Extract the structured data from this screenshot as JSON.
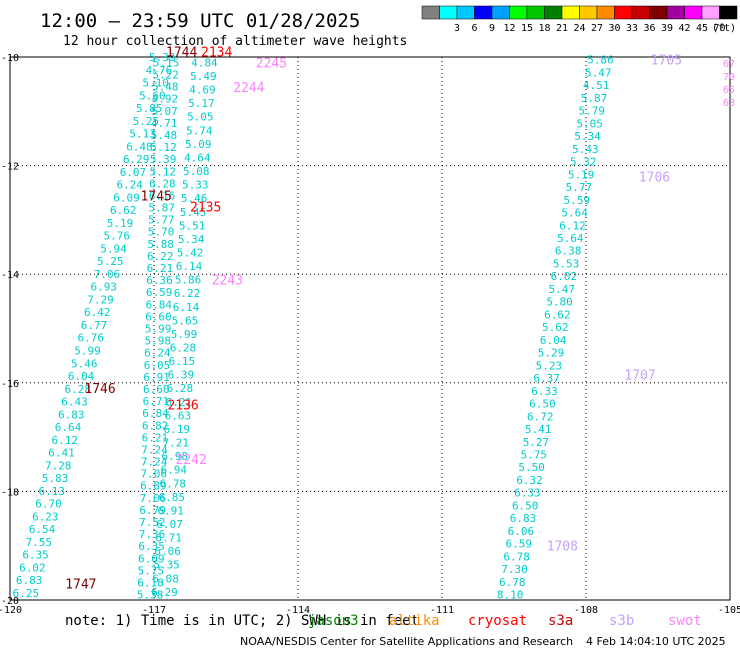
{
  "header": {
    "title": "12:00 – 23:59 UTC 01/28/2025",
    "subtitle": "12 hour collection of altimeter wave heights"
  },
  "legend": {
    "unit": "(ft)",
    "bins": [
      {
        "label": "",
        "color": "#808080"
      },
      {
        "label": "3",
        "color": "#00ffff"
      },
      {
        "label": "6",
        "color": "#00c8ff"
      },
      {
        "label": "9",
        "color": "#0000ff"
      },
      {
        "label": "12",
        "color": "#00a0ff"
      },
      {
        "label": "15",
        "color": "#00ff00"
      },
      {
        "label": "18",
        "color": "#00c800"
      },
      {
        "label": "21",
        "color": "#008000"
      },
      {
        "label": "24",
        "color": "#ffff00"
      },
      {
        "label": "27",
        "color": "#ffc800"
      },
      {
        "label": "30",
        "color": "#ff8c00"
      },
      {
        "label": "33",
        "color": "#ff0000"
      },
      {
        "label": "36",
        "color": "#c80000"
      },
      {
        "label": "39",
        "color": "#800000"
      },
      {
        "label": "42",
        "color": "#a000a0"
      },
      {
        "label": "45",
        "color": "#ff00ff"
      },
      {
        "label": "70",
        "color": "#ffa0ff"
      },
      {
        "label": "",
        "color": "#000000"
      }
    ]
  },
  "footer": {
    "note": "note: 1) Time is in UTC; 2) SWH is in feet",
    "credit": "NOAA/NESDIS Center for Satellite Applications and Research",
    "generated": "4 Feb 14:04:10 UTC 2025",
    "satellites": [
      {
        "name": "jason3",
        "color": "#008000"
      },
      {
        "name": "altika",
        "color": "#ff8c00"
      },
      {
        "name": "cryosat",
        "color": "#ff0000"
      },
      {
        "name": "s3a",
        "color": "#c80000"
      },
      {
        "name": "s3b",
        "color": "#c8a0ff"
      },
      {
        "name": "swot",
        "color": "#ff80ff"
      }
    ]
  },
  "chart_data": {
    "type": "scatter",
    "xlim": [
      -120,
      -105
    ],
    "ylim": [
      -20,
      -10
    ],
    "grid": true,
    "x_ticks": [
      "-120",
      "-117",
      "-114",
      "-111",
      "-108",
      "-105"
    ],
    "y_ticks": [
      "-10",
      "-12",
      "-14",
      "-16",
      "-18",
      "-20"
    ],
    "text_color": "#00cccc",
    "tracks": [
      {
        "values": [
          "6.25",
          "6.83",
          "6.02",
          "6.35",
          "7.55",
          "6.54",
          "6.23",
          "6.70",
          "6.13",
          "5.83",
          "7.28",
          "6.41",
          "6.12",
          "6.64",
          "6.83",
          "6.43",
          "6.28",
          "6.04",
          "5.46",
          "5.99",
          "6.76",
          "6.77",
          "6.42",
          "7.29",
          "6.93",
          "7.06",
          "5.25",
          "5.94",
          "5.76",
          "5.19",
          "6.62",
          "6.09",
          "6.24",
          "6.07",
          "6.29",
          "6.48",
          "5.13",
          "5.25",
          "5.85",
          "5.60",
          "5.10",
          "4.76",
          "5.39"
        ],
        "x_start": -119.67,
        "y_start": -19.87,
        "x_end": -116.83,
        "y_end": -10.0
      },
      {
        "values": [
          "5.38",
          "6.18",
          "5.75",
          "6.09",
          "6.35",
          "7.36",
          "7.52",
          "6.79",
          "7.06",
          "6.89",
          "7.06",
          "7.24",
          "7.24",
          "6.21",
          "6.82",
          "6.84",
          "6.71",
          "6.60",
          "6.91",
          "6.05",
          "6.24",
          "5.98",
          "5.99",
          "6.60",
          "6.84",
          "6.59",
          "6.36",
          "6.21",
          "6.22",
          "5.88",
          "5.70",
          "5.77",
          "5.87",
          "6.16",
          "6.28",
          "5.12",
          "5.39",
          "5.12",
          "5.48",
          "4.71",
          "5.07",
          "4.92",
          "5.48",
          "5.22",
          "5.15"
        ],
        "x_start": -117.08,
        "y_start": -19.9,
        "x_end": -116.75,
        "y_end": -10.1
      },
      {
        "values": [
          "6.29",
          "6.08",
          "5.35",
          "6.06",
          "6.71",
          "6.07",
          "6.91",
          "6.85",
          "6.78",
          "6.94",
          "6.98",
          "7.21",
          "6.19",
          "6.63",
          "6.21",
          "6.28",
          "6.39",
          "6.15",
          "6.28",
          "5.99",
          "5.65",
          "6.14",
          "6.22",
          "5.86",
          "6.14",
          "5.42",
          "5.34",
          "5.51",
          "5.45",
          "5.46",
          "5.33",
          "5.08",
          "4.64",
          "5.09",
          "5.74",
          "5.05",
          "5.17",
          "4.69",
          "5.49",
          "4.84"
        ],
        "x_start": -116.78,
        "y_start": -19.85,
        "x_end": -115.95,
        "y_end": -10.1
      },
      {
        "values": [
          "5.86",
          "5.47",
          "4.51",
          "5.87",
          "5.79",
          "5.05",
          "5.34",
          "5.43",
          "5.32",
          "5.19",
          "5.77",
          "5.59",
          "5.64",
          "6.12",
          "5.64",
          "6.38",
          "5.53",
          "6.02",
          "5.47",
          "5.80",
          "6.62",
          "5.62",
          "6.04",
          "5.29",
          "5.23",
          "6.37",
          "6.33",
          "6.50",
          "6.72",
          "5.41",
          "5.27",
          "5.75",
          "5.50",
          "6.32",
          "6.33",
          "6.50",
          "6.83",
          "6.06",
          "6.59",
          "6.78",
          "7.30",
          "6.78",
          "8.10"
        ],
        "x_start": -107.7,
        "y_start": -10.05,
        "x_end": -109.58,
        "y_end": -19.9
      }
    ],
    "partial_values": [
      "67",
      "70",
      "65",
      "63"
    ],
    "time_labels": [
      {
        "text": "1744",
        "x": -116.75,
        "y": -9.9,
        "color": "#800000"
      },
      {
        "text": "2134",
        "x": -116.02,
        "y": -9.9,
        "color": "#ff0000"
      },
      {
        "text": "2245",
        "x": -114.88,
        "y": -10.1,
        "color": "#ff80ff"
      },
      {
        "text": "2244",
        "x": -115.35,
        "y": -10.55,
        "color": "#ff80ff"
      },
      {
        "text": "1745",
        "x": -117.28,
        "y": -12.55,
        "color": "#800000"
      },
      {
        "text": "2135",
        "x": -116.25,
        "y": -12.75,
        "color": "#ff0000"
      },
      {
        "text": "2243",
        "x": -115.8,
        "y": -14.1,
        "color": "#ff80ff"
      },
      {
        "text": "1746",
        "x": -118.45,
        "y": -16.1,
        "color": "#800000"
      },
      {
        "text": "2136",
        "x": -116.72,
        "y": -16.4,
        "color": "#ff0000"
      },
      {
        "text": "2242",
        "x": -116.55,
        "y": -17.4,
        "color": "#ff80ff"
      },
      {
        "text": "1747",
        "x": -118.85,
        "y": -19.7,
        "color": "#800000"
      },
      {
        "text": "1705",
        "x": -106.65,
        "y": -10.05,
        "color": "#c8a0ff"
      },
      {
        "text": "1706",
        "x": -106.9,
        "y": -12.2,
        "color": "#c8a0ff"
      },
      {
        "text": "1707",
        "x": -107.2,
        "y": -15.85,
        "color": "#c8a0ff"
      },
      {
        "text": "1708",
        "x": -108.82,
        "y": -19.0,
        "color": "#c8a0ff"
      }
    ]
  }
}
